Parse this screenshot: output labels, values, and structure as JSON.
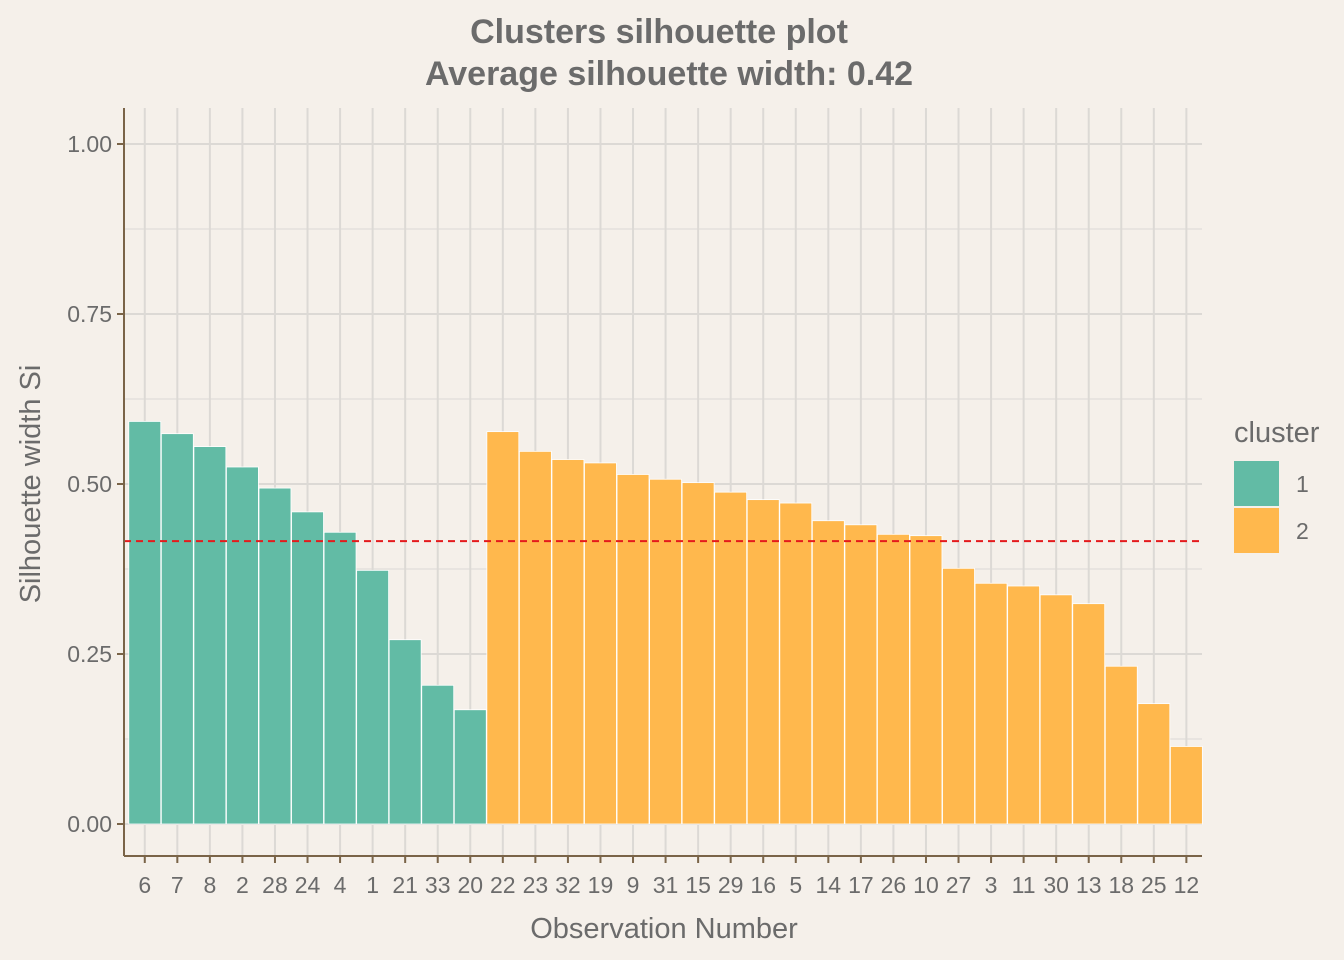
{
  "chart_data": {
    "type": "bar",
    "title": "Clusters silhouette plot",
    "subtitle": "Average silhouette width: 0.42",
    "xlabel": "Observation Number",
    "ylabel": "Silhouette width Si",
    "ylim": [
      -0.05,
      1.05
    ],
    "yticks": [
      0.0,
      0.25,
      0.5,
      0.75,
      1.0
    ],
    "ytick_labels": [
      "0.00",
      "0.25",
      "0.50",
      "0.75",
      "1.00"
    ],
    "grid": true,
    "average_line": {
      "value": 0.416,
      "color": "#e41a1c",
      "style": "dashed"
    },
    "legend": {
      "title": "cluster",
      "placement": "right",
      "entries": [
        {
          "label": "1",
          "color": "#62bba5"
        },
        {
          "label": "2",
          "color": "#ffb84d"
        }
      ]
    },
    "categories": [
      "6",
      "7",
      "8",
      "2",
      "28",
      "24",
      "4",
      "1",
      "21",
      "33",
      "20",
      "22",
      "23",
      "32",
      "19",
      "9",
      "31",
      "15",
      "29",
      "16",
      "5",
      "14",
      "17",
      "26",
      "10",
      "27",
      "3",
      "11",
      "30",
      "13",
      "18",
      "25",
      "12"
    ],
    "values": [
      0.592,
      0.574,
      0.555,
      0.525,
      0.494,
      0.459,
      0.429,
      0.373,
      0.271,
      0.204,
      0.168,
      0.577,
      0.548,
      0.536,
      0.531,
      0.514,
      0.507,
      0.502,
      0.488,
      0.477,
      0.472,
      0.446,
      0.44,
      0.426,
      0.424,
      0.376,
      0.354,
      0.35,
      0.337,
      0.324,
      0.232,
      0.177,
      0.114
    ],
    "clusters": [
      "1",
      "1",
      "1",
      "1",
      "1",
      "1",
      "1",
      "1",
      "1",
      "1",
      "1",
      "2",
      "2",
      "2",
      "2",
      "2",
      "2",
      "2",
      "2",
      "2",
      "2",
      "2",
      "2",
      "2",
      "2",
      "2",
      "2",
      "2",
      "2",
      "2",
      "2",
      "2",
      "2"
    ],
    "colors": {
      "background": "#f5f0ea",
      "grid": "#dcd9d5",
      "axis": "#7a6448",
      "text": "#6b6b6b",
      "bar_outline": "#ffffff"
    }
  }
}
